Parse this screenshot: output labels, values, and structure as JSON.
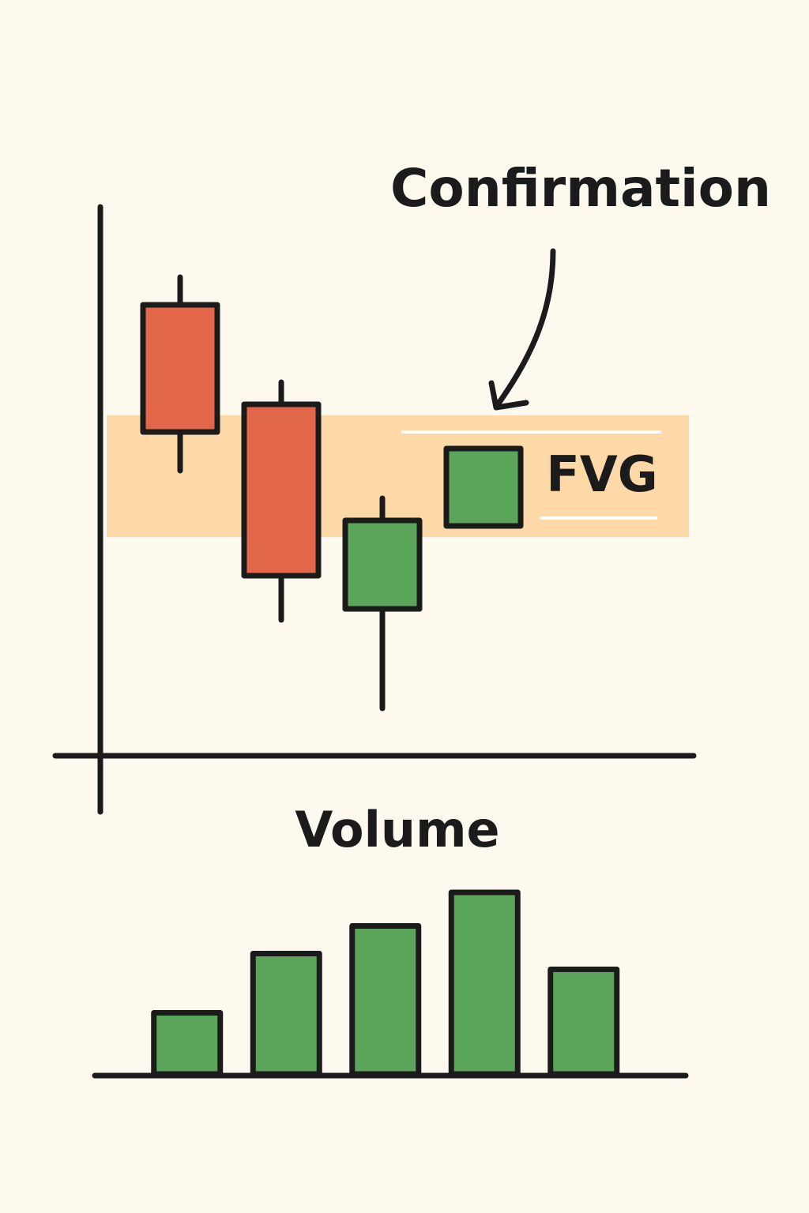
{
  "chart_data": [
    {
      "type": "candlestick",
      "categories": [
        null,
        null,
        null,
        null
      ],
      "open": [
        82,
        64,
        27,
        42
      ],
      "high": [
        87,
        68,
        47,
        56
      ],
      "low": [
        52,
        25,
        9,
        42
      ],
      "close": [
        59,
        33,
        43,
        56
      ],
      "up_color": "#5ba65a",
      "down_color": "#e2664a",
      "ylim": [
        0,
        100
      ],
      "annotations": [
        {
          "text": "FVG",
          "range": [
            40,
            62
          ],
          "color": "#fdd9a8"
        },
        {
          "text": "Confirmation"
        }
      ]
    },
    {
      "type": "bar",
      "title": "Volume",
      "values": [
        31,
        61,
        75,
        92,
        53
      ],
      "color": "#5ba65a",
      "ylim": [
        0,
        100
      ]
    }
  ]
}
